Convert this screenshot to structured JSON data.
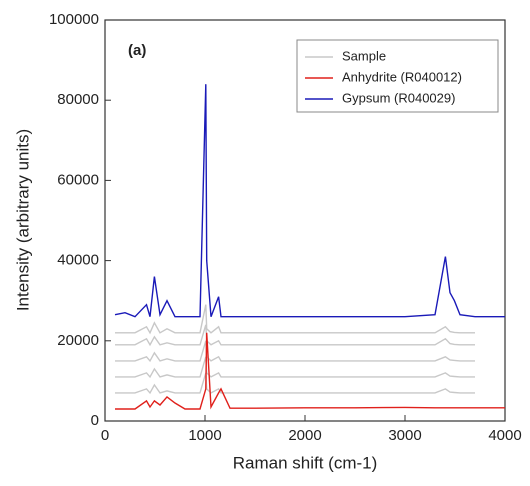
{
  "chart_data": {
    "type": "line",
    "annotation": "(a)",
    "x_label": "Raman shift (cm-1)",
    "y_label": "Intensity (arbitrary units)",
    "x": [
      100,
      200,
      300,
      415,
      450,
      494,
      550,
      620,
      700,
      800,
      950,
      1008,
      1017,
      1060,
      1136,
      1160,
      1250,
      1500,
      2000,
      2500,
      3000,
      3300,
      3404,
      3450,
      3494,
      3550,
      3700,
      3800,
      4000
    ],
    "series": [
      {
        "name": "Sample",
        "color": "#c8c8c8",
        "values": [
          7000,
          7000,
          7000,
          8000,
          7000,
          9000,
          7000,
          7500,
          7000,
          7000,
          7000,
          12000,
          8000,
          7000,
          8000,
          7000,
          7000,
          7000,
          7000,
          7000,
          7000,
          7000,
          8000,
          7200,
          7100,
          7000,
          7000,
          null,
          null
        ]
      },
      {
        "color": "#c8c8c8",
        "values": [
          11000,
          11000,
          11000,
          12000,
          11000,
          13000,
          11000,
          11500,
          11000,
          11000,
          11000,
          16000,
          12000,
          11000,
          12000,
          11000,
          11000,
          11000,
          11000,
          11000,
          11000,
          11000,
          12000,
          11200,
          11100,
          11000,
          11000,
          null,
          null
        ]
      },
      {
        "color": "#c8c8c8",
        "values": [
          15000,
          15000,
          15000,
          16000,
          15000,
          17000,
          15000,
          15500,
          15000,
          15000,
          15000,
          20000,
          16000,
          15000,
          16000,
          15000,
          15000,
          15000,
          15000,
          15000,
          15000,
          15000,
          16000,
          15200,
          15100,
          15000,
          15000,
          null,
          null
        ]
      },
      {
        "color": "#c8c8c8",
        "values": [
          19000,
          19000,
          19000,
          20500,
          19000,
          21000,
          19000,
          19500,
          19000,
          19000,
          19000,
          24000,
          20000,
          19000,
          20000,
          19000,
          19000,
          19000,
          19000,
          19000,
          19000,
          19000,
          20500,
          19300,
          19100,
          19000,
          19000,
          null,
          null
        ]
      },
      {
        "color": "#c8c8c8",
        "values": [
          22000,
          22000,
          22000,
          23500,
          22000,
          24500,
          22000,
          23000,
          22000,
          22000,
          22000,
          29000,
          23000,
          22000,
          23500,
          22000,
          22000,
          22000,
          22000,
          22000,
          22000,
          22000,
          23500,
          22300,
          22100,
          22000,
          22000,
          null,
          null
        ]
      },
      {
        "name": "Anhydrite (R040012)",
        "color": "#e0201b",
        "values": [
          3000,
          3000,
          3000,
          5000,
          3500,
          5000,
          4000,
          6000,
          4500,
          3000,
          3000,
          8000,
          22000,
          3500,
          7000,
          8000,
          3200,
          3200,
          3300,
          3300,
          3400,
          3300,
          3300,
          3300,
          3300,
          3300,
          3300,
          3300,
          3300
        ]
      },
      {
        "name": "Gypsum (R040029)",
        "color": "#1a1ab8",
        "values": [
          26500,
          27000,
          26000,
          29000,
          26000,
          36000,
          26500,
          30000,
          26000,
          26000,
          26000,
          84000,
          40000,
          26000,
          31000,
          26000,
          26000,
          26000,
          26000,
          26000,
          26000,
          26500,
          41000,
          32000,
          30000,
          26500,
          26000,
          26000,
          26000
        ]
      }
    ],
    "xlim": [
      0,
      4000
    ],
    "xticks": [
      0,
      1000,
      2000,
      3000,
      4000
    ],
    "ylim": [
      0,
      100000
    ],
    "yticks": [
      0,
      20000,
      40000,
      60000,
      80000,
      100000
    ],
    "legend": "upper right"
  }
}
